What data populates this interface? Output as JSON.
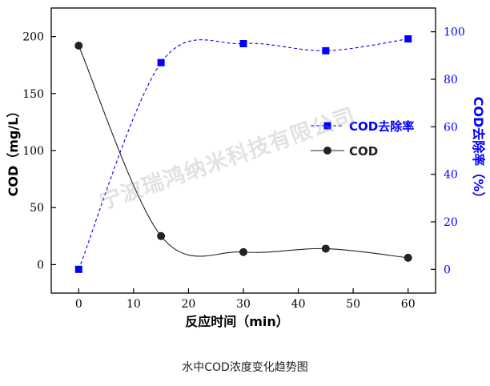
{
  "caption": "水中COD浓度变化趋势图",
  "watermark": "宁波瑞鸿纳米科技有限公司",
  "chart_data": {
    "type": "line",
    "xlabel": "反应时间（min）",
    "x": [
      0,
      15,
      30,
      45,
      60
    ],
    "xticks": [
      0,
      10,
      20,
      30,
      40,
      50,
      60
    ],
    "xlim": [
      -5,
      65
    ],
    "y_left": {
      "label": "COD（mg/L）",
      "lim": [
        -25,
        225
      ],
      "ticks": [
        0,
        50,
        100,
        150,
        200
      ]
    },
    "y_right": {
      "label": "COD去除率（%）",
      "lim": [
        -10,
        110
      ],
      "ticks": [
        0,
        20,
        40,
        60,
        80,
        100
      ]
    },
    "legend_position": "middle-right",
    "series": [
      {
        "name": "COD去除率",
        "axis": "right",
        "values": [
          0,
          87,
          95,
          92,
          97
        ],
        "color": "#0000ff",
        "marker": "square",
        "line": "dashed"
      },
      {
        "name": "COD",
        "axis": "left",
        "values": [
          192,
          25,
          11,
          14,
          6
        ],
        "color": "#222222",
        "marker": "circle",
        "line": "solid"
      }
    ]
  }
}
